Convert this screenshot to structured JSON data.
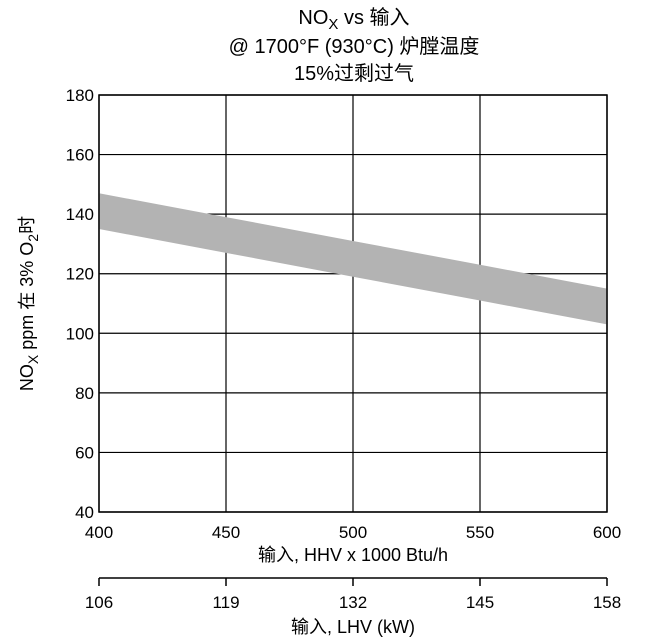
{
  "chart_data": {
    "type": "area",
    "title_lines": [
      {
        "main": "NO",
        "sub": "X",
        "rest": " vs 输入"
      },
      {
        "main": "@ 1700°F (930°C) 炉膛温度"
      },
      {
        "main": "15%过剩过气"
      }
    ],
    "ylabel": {
      "main": "NO",
      "sub": "X",
      "mid": " ppm 在 3% O",
      "sub2": "2",
      "rest": "时"
    },
    "xlabel": "输入, HHV x 1000 Btu/h",
    "x2label": "输入, LHV (kW)",
    "xlim": [
      400,
      600
    ],
    "ylim": [
      40,
      180
    ],
    "x_ticks": [
      400,
      450,
      500,
      550,
      600
    ],
    "y_ticks": [
      40,
      60,
      80,
      100,
      120,
      140,
      160,
      180
    ],
    "x2_ticks": [
      "106",
      "119",
      "132",
      "145",
      "158"
    ],
    "grid": true,
    "band": {
      "x": [
        400,
        450,
        500,
        550,
        600
      ],
      "upper": [
        147,
        139,
        131,
        123,
        115
      ],
      "lower": [
        135,
        127,
        119,
        111,
        103
      ]
    },
    "band_color": "#b3b3b3"
  }
}
